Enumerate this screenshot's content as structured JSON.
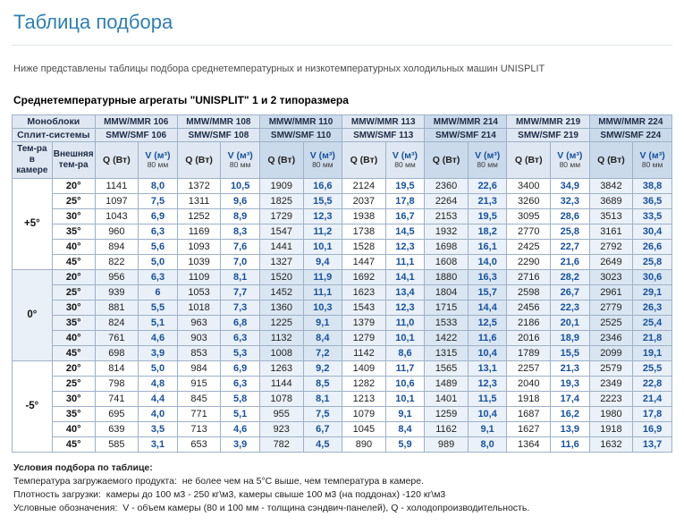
{
  "colors": {
    "accent": "#2e7fb2",
    "table-border": "#9db1c7",
    "header-bg": "#dfe8f2",
    "header-band": "#cbdaeb",
    "band-bg": "#eaf1f8",
    "shaded-bg": "#e9f0f8",
    "shaded-band": "#d9e6f2",
    "v-color": "#17519e"
  },
  "page": {
    "title": "Таблица подбора",
    "intro": "Ниже представлены таблицы подбора среднетемпературных и низкотемпературных холодильных машин UNISPLIT",
    "section_heading": "Среднетемпературные агрегаты \"UNISPLIT\" 1 и 2 типоразмера"
  },
  "table": {
    "monoblocks_label": "Моноблоки",
    "splits_label": "Сплит-системы",
    "camera_temp_label": "Тем-ра в камере",
    "external_temp_label": "Внешняя тем-ра",
    "q_header": "Q (Вт)",
    "v_header": "V (м³)",
    "v_subheader": "80 мм",
    "models": [
      {
        "monoblock": "MMW/MMR 106",
        "split": "SMW/SMF 106"
      },
      {
        "monoblock": "MMW/MMR 108",
        "split": "SMW/SMF 108"
      },
      {
        "monoblock": "MMW/MMR 110",
        "split": "SMW/SMF 110"
      },
      {
        "monoblock": "MMW/MMR 113",
        "split": "SMW/SMF 113"
      },
      {
        "monoblock": "MMW/MMR 214",
        "split": "SMW/SMF 214"
      },
      {
        "monoblock": "MMW/MMR 219",
        "split": "SMW/SMF 219"
      },
      {
        "monoblock": "MMW/MMR 224",
        "split": "SMW/SMF 224"
      }
    ],
    "groups": [
      {
        "camera_temp": "+5°",
        "rows": [
          {
            "ext": "20°",
            "values": [
              [
                "1141",
                "8,0"
              ],
              [
                "1372",
                "10,5"
              ],
              [
                "1909",
                "16,6"
              ],
              [
                "2124",
                "19,5"
              ],
              [
                "2360",
                "22,6"
              ],
              [
                "3400",
                "34,9"
              ],
              [
                "3842",
                "38,8"
              ]
            ]
          },
          {
            "ext": "25°",
            "values": [
              [
                "1097",
                "7,5"
              ],
              [
                "1311",
                "9,6"
              ],
              [
                "1825",
                "15,5"
              ],
              [
                "2037",
                "17,8"
              ],
              [
                "2264",
                "21,3"
              ],
              [
                "3260",
                "32,3"
              ],
              [
                "3689",
                "36,5"
              ]
            ]
          },
          {
            "ext": "30°",
            "values": [
              [
                "1043",
                "6,9"
              ],
              [
                "1252",
                "8,9"
              ],
              [
                "1729",
                "12,3"
              ],
              [
                "1938",
                "16,7"
              ],
              [
                "2153",
                "19,5"
              ],
              [
                "3095",
                "28,6"
              ],
              [
                "3513",
                "33,5"
              ]
            ]
          },
          {
            "ext": "35°",
            "values": [
              [
                "960",
                "6,3"
              ],
              [
                "1169",
                "8,3"
              ],
              [
                "1547",
                "11,2"
              ],
              [
                "1738",
                "14,5"
              ],
              [
                "1932",
                "18,2"
              ],
              [
                "2770",
                "25,8"
              ],
              [
                "3161",
                "30,4"
              ]
            ]
          },
          {
            "ext": "40°",
            "values": [
              [
                "894",
                "5,6"
              ],
              [
                "1093",
                "7,6"
              ],
              [
                "1441",
                "10,1"
              ],
              [
                "1528",
                "12,3"
              ],
              [
                "1698",
                "16,1"
              ],
              [
                "2425",
                "22,7"
              ],
              [
                "2792",
                "26,6"
              ]
            ]
          },
          {
            "ext": "45°",
            "values": [
              [
                "822",
                "5,0"
              ],
              [
                "1039",
                "7,0"
              ],
              [
                "1327",
                "9,4"
              ],
              [
                "1447",
                "11,1"
              ],
              [
                "1608",
                "14,0"
              ],
              [
                "2290",
                "21,6"
              ],
              [
                "2649",
                "25,8"
              ]
            ]
          }
        ]
      },
      {
        "camera_temp": "0°",
        "rows": [
          {
            "ext": "20°",
            "values": [
              [
                "956",
                "6,3"
              ],
              [
                "1109",
                "8,1"
              ],
              [
                "1520",
                "11,9"
              ],
              [
                "1692",
                "14,1"
              ],
              [
                "1880",
                "16,3"
              ],
              [
                "2716",
                "28,2"
              ],
              [
                "3023",
                "30,6"
              ]
            ]
          },
          {
            "ext": "25°",
            "values": [
              [
                "939",
                "6"
              ],
              [
                "1053",
                "7,7"
              ],
              [
                "1452",
                "11,1"
              ],
              [
                "1623",
                "13,4"
              ],
              [
                "1804",
                "15,7"
              ],
              [
                "2598",
                "26,7"
              ],
              [
                "2961",
                "29,1"
              ]
            ]
          },
          {
            "ext": "30°",
            "values": [
              [
                "881",
                "5,5"
              ],
              [
                "1018",
                "7,3"
              ],
              [
                "1360",
                "10,3"
              ],
              [
                "1543",
                "12,3"
              ],
              [
                "1715",
                "14,4"
              ],
              [
                "2456",
                "22,3"
              ],
              [
                "2779",
                "26,3"
              ]
            ]
          },
          {
            "ext": "35°",
            "values": [
              [
                "824",
                "5,1"
              ],
              [
                "963",
                "6,8"
              ],
              [
                "1225",
                "9,1"
              ],
              [
                "1379",
                "11,0"
              ],
              [
                "1533",
                "12,5"
              ],
              [
                "2186",
                "20,1"
              ],
              [
                "2525",
                "25,4"
              ]
            ]
          },
          {
            "ext": "40°",
            "values": [
              [
                "761",
                "4,6"
              ],
              [
                "903",
                "6,3"
              ],
              [
                "1132",
                "8,4"
              ],
              [
                "1279",
                "10,1"
              ],
              [
                "1422",
                "11,6"
              ],
              [
                "2016",
                "18,9"
              ],
              [
                "2346",
                "21,8"
              ]
            ]
          },
          {
            "ext": "45°",
            "values": [
              [
                "698",
                "3,9"
              ],
              [
                "853",
                "5,3"
              ],
              [
                "1008",
                "7,2"
              ],
              [
                "1142",
                "8,6"
              ],
              [
                "1315",
                "10,4"
              ],
              [
                "1789",
                "15,5"
              ],
              [
                "2099",
                "19,1"
              ]
            ]
          }
        ]
      },
      {
        "camera_temp": "-5°",
        "rows": [
          {
            "ext": "20°",
            "values": [
              [
                "814",
                "5,0"
              ],
              [
                "984",
                "6,9"
              ],
              [
                "1263",
                "9,2"
              ],
              [
                "1409",
                "11,7"
              ],
              [
                "1565",
                "13,1"
              ],
              [
                "2257",
                "21,3"
              ],
              [
                "2579",
                "25,5"
              ]
            ]
          },
          {
            "ext": "25°",
            "values": [
              [
                "798",
                "4,8"
              ],
              [
                "915",
                "6,3"
              ],
              [
                "1144",
                "8,5"
              ],
              [
                "1282",
                "10,6"
              ],
              [
                "1489",
                "12,3"
              ],
              [
                "2040",
                "19,3"
              ],
              [
                "2349",
                "22,8"
              ]
            ]
          },
          {
            "ext": "30°",
            "values": [
              [
                "741",
                "4,4"
              ],
              [
                "845",
                "5,8"
              ],
              [
                "1078",
                "8,1"
              ],
              [
                "1213",
                "10,1"
              ],
              [
                "1401",
                "11,5"
              ],
              [
                "1918",
                "17,4"
              ],
              [
                "2223",
                "21,4"
              ]
            ]
          },
          {
            "ext": "35°",
            "values": [
              [
                "695",
                "4,0"
              ],
              [
                "771",
                "5,1"
              ],
              [
                "955",
                "7,5"
              ],
              [
                "1079",
                "9,1"
              ],
              [
                "1259",
                "10,4"
              ],
              [
                "1687",
                "16,2"
              ],
              [
                "1980",
                "17,8"
              ]
            ]
          },
          {
            "ext": "40°",
            "values": [
              [
                "639",
                "3,5"
              ],
              [
                "713",
                "4,6"
              ],
              [
                "923",
                "6,7"
              ],
              [
                "1045",
                "8,4"
              ],
              [
                "1162",
                "9,1"
              ],
              [
                "1627",
                "13,9"
              ],
              [
                "1918",
                "16,9"
              ]
            ]
          },
          {
            "ext": "45°",
            "values": [
              [
                "585",
                "3,1"
              ],
              [
                "653",
                "3,9"
              ],
              [
                "782",
                "4,5"
              ],
              [
                "890",
                "5,9"
              ],
              [
                "989",
                "8,0"
              ],
              [
                "1364",
                "11,6"
              ],
              [
                "1632",
                "13,7"
              ]
            ]
          }
        ]
      }
    ]
  },
  "footnotes": {
    "heading": "Условия подбора по таблице:",
    "lines": [
      {
        "label": "Температура загружаемого продукта:",
        "text": "не более чем на 5°С выше, чем температура в камере."
      },
      {
        "label": "Плотность загрузки:",
        "text": "камеры до 100 м3 - 250 кг\\м3,  камеры свыше 100 м3 (на поддонах)  -120 кг\\м3"
      },
      {
        "label": "Условные обозначения:",
        "text": "V - объем камеры (80 и 100 мм  - толщина сэндвич-панелей), Q - холодопроизводительность."
      }
    ]
  }
}
